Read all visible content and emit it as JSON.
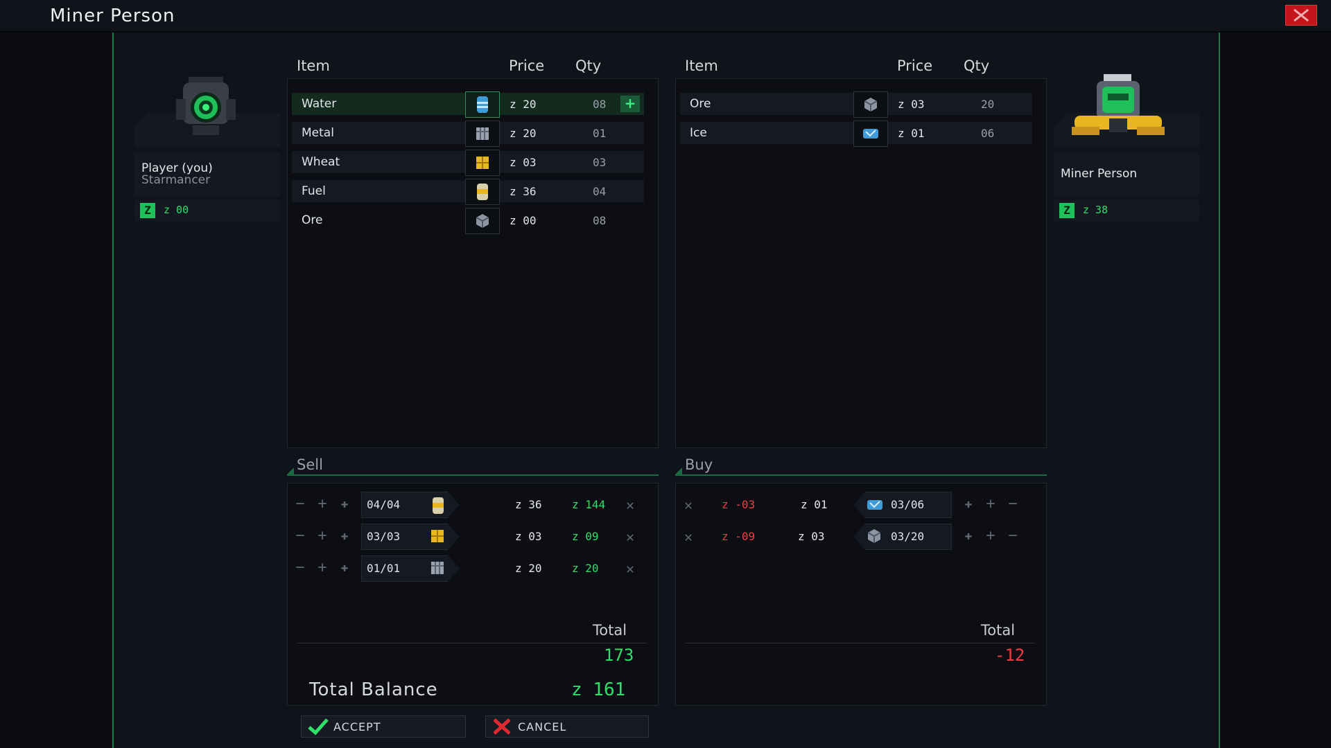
{
  "window": {
    "title": "Miner Person"
  },
  "player": {
    "name": "Player (you)",
    "subtitle": "Starmancer",
    "money": "z 00"
  },
  "trader": {
    "name": "Miner Person",
    "money": "z 38"
  },
  "headers": {
    "item": "Item",
    "price": "Price",
    "qty": "Qty"
  },
  "player_inventory": [
    {
      "name": "Water",
      "icon": "water-canister-icon",
      "price": "z 20",
      "qty": "08",
      "selected": true
    },
    {
      "name": "Metal",
      "icon": "metal-crate-icon",
      "price": "z 20",
      "qty": "01"
    },
    {
      "name": "Wheat",
      "icon": "wheat-crate-icon",
      "price": "z 03",
      "qty": "03"
    },
    {
      "name": "Fuel",
      "icon": "fuel-canister-icon",
      "price": "z 36",
      "qty": "04"
    },
    {
      "name": "Ore",
      "icon": "ore-crate-icon",
      "price": "z 00",
      "qty": "08"
    }
  ],
  "trader_inventory": [
    {
      "name": "Ore",
      "icon": "ore-crate-icon",
      "price": "z 03",
      "qty": "20"
    },
    {
      "name": "Ice",
      "icon": "ice-crate-icon",
      "price": "z 01",
      "qty": "06"
    }
  ],
  "sell": {
    "label": "Sell",
    "rows": [
      {
        "qty": "04/04",
        "icon": "fuel-canister-icon",
        "price": "z 36",
        "total": "z 144"
      },
      {
        "qty": "03/03",
        "icon": "wheat-crate-icon",
        "price": "z 03",
        "total": "z 09"
      },
      {
        "qty": "01/01",
        "icon": "metal-crate-icon",
        "price": "z 20",
        "total": "z 20"
      }
    ],
    "total_label": "Total",
    "total": "173"
  },
  "buy": {
    "label": "Buy",
    "rows": [
      {
        "total": "z -03",
        "price": "z 01",
        "qty": "03/06",
        "icon": "ice-crate-icon"
      },
      {
        "total": "z -09",
        "price": "z 03",
        "qty": "03/20",
        "icon": "ore-crate-icon"
      }
    ],
    "total_label": "Total",
    "total": "-12"
  },
  "balance": {
    "label": "Total Balance",
    "value": "z 161"
  },
  "actions": {
    "accept": "ACCEPT",
    "cancel": "CANCEL"
  },
  "colors": {
    "accent_green": "#2ee06a",
    "negative_red": "#f03c44",
    "close_red": "#c3161c"
  }
}
